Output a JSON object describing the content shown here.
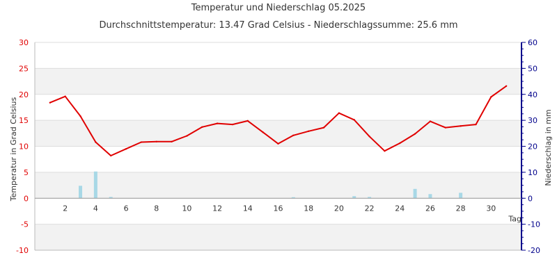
{
  "title": "Temperatur und Niederschlag 05.2025",
  "subtitle": "Durchschnittstemperatur: 13.47 Grad Celsius   -   Niederschlagssumme: 25.6 mm",
  "colors": {
    "temperature": "#e00000",
    "precipitation": "#a8d8e6",
    "left_axis": "#e00000",
    "right_axis": "#00008b",
    "band": "#f2f2f2",
    "grid": "#dddddd"
  },
  "chart_data": {
    "type": "line",
    "xlabel": "Tag",
    "x_ticks": [
      2,
      4,
      6,
      8,
      10,
      12,
      14,
      16,
      18,
      20,
      22,
      24,
      26,
      28,
      30
    ],
    "xlim": [
      0,
      32
    ],
    "y_left": {
      "label": "Temperatur in Grad Celsius",
      "lim": [
        -10,
        30
      ],
      "ticks": [
        30,
        25,
        20,
        15,
        10,
        5,
        0,
        -5,
        -10
      ]
    },
    "y_right": {
      "label": "Niederschlag in mm",
      "lim": [
        -20,
        60
      ],
      "ticks": [
        60,
        50,
        40,
        30,
        20,
        10,
        0,
        -10,
        -20
      ]
    },
    "series": [
      {
        "type": "line",
        "x": [
          1,
          2,
          3,
          4,
          5,
          6,
          7,
          8,
          9,
          10,
          11,
          12,
          13,
          14,
          15,
          16,
          17,
          18,
          19,
          20,
          21,
          22,
          23,
          24,
          25,
          26,
          27,
          28,
          29,
          30,
          31
        ],
        "values": [
          18.4,
          19.6,
          15.8,
          10.8,
          8.2,
          9.5,
          10.8,
          10.9,
          10.9,
          12.0,
          13.7,
          14.4,
          14.2,
          14.9,
          12.7,
          10.5,
          12.1,
          12.9,
          13.6,
          16.4,
          15.1,
          11.9,
          9.1,
          10.6,
          12.4,
          14.8,
          13.6,
          13.9,
          14.2,
          19.5,
          21.6
        ]
      },
      {
        "type": "bar",
        "x": [
          3,
          4,
          5,
          17,
          21,
          22,
          25,
          26,
          28
        ],
        "values": [
          4.8,
          10.3,
          0.5,
          0.4,
          0.8,
          0.5,
          3.6,
          1.6,
          2.1
        ]
      }
    ]
  }
}
